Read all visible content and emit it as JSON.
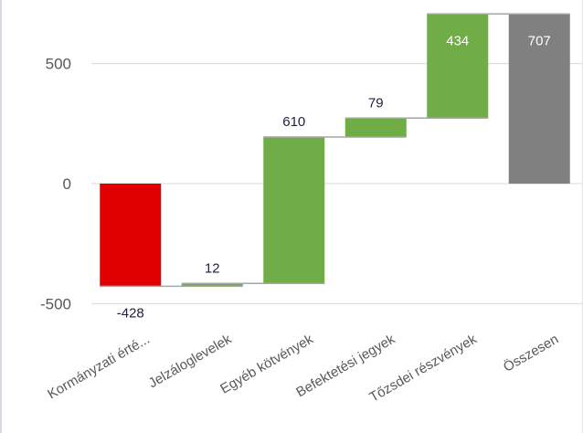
{
  "chart_data": {
    "type": "bar",
    "subtype": "waterfall",
    "title": "",
    "xlabel": "",
    "ylabel": "",
    "ylim": [
      -500,
      700
    ],
    "yticks": [
      500,
      0,
      -500
    ],
    "ytick_labels": [
      "500",
      "0",
      "-500"
    ],
    "grid": true,
    "legend": "none",
    "categories": [
      "Kormányzati érté...",
      "Jelzáloglevelek",
      "Egyéb kötvények",
      "Befektetési jegyek",
      "Tőzsdei részvények",
      "Összesen"
    ],
    "values": [
      -428,
      12,
      610,
      79,
      434,
      707
    ],
    "data_labels": [
      "-428",
      "12",
      "610",
      "79",
      "434",
      "707"
    ],
    "is_total": [
      false,
      false,
      false,
      false,
      false,
      true
    ],
    "colors": {
      "decrease": "#e00000",
      "increase": "#70ad47",
      "total": "#808080",
      "connector": "#a6a6a6",
      "grid": "#d9d9d9",
      "tick_text": "#595959"
    }
  }
}
